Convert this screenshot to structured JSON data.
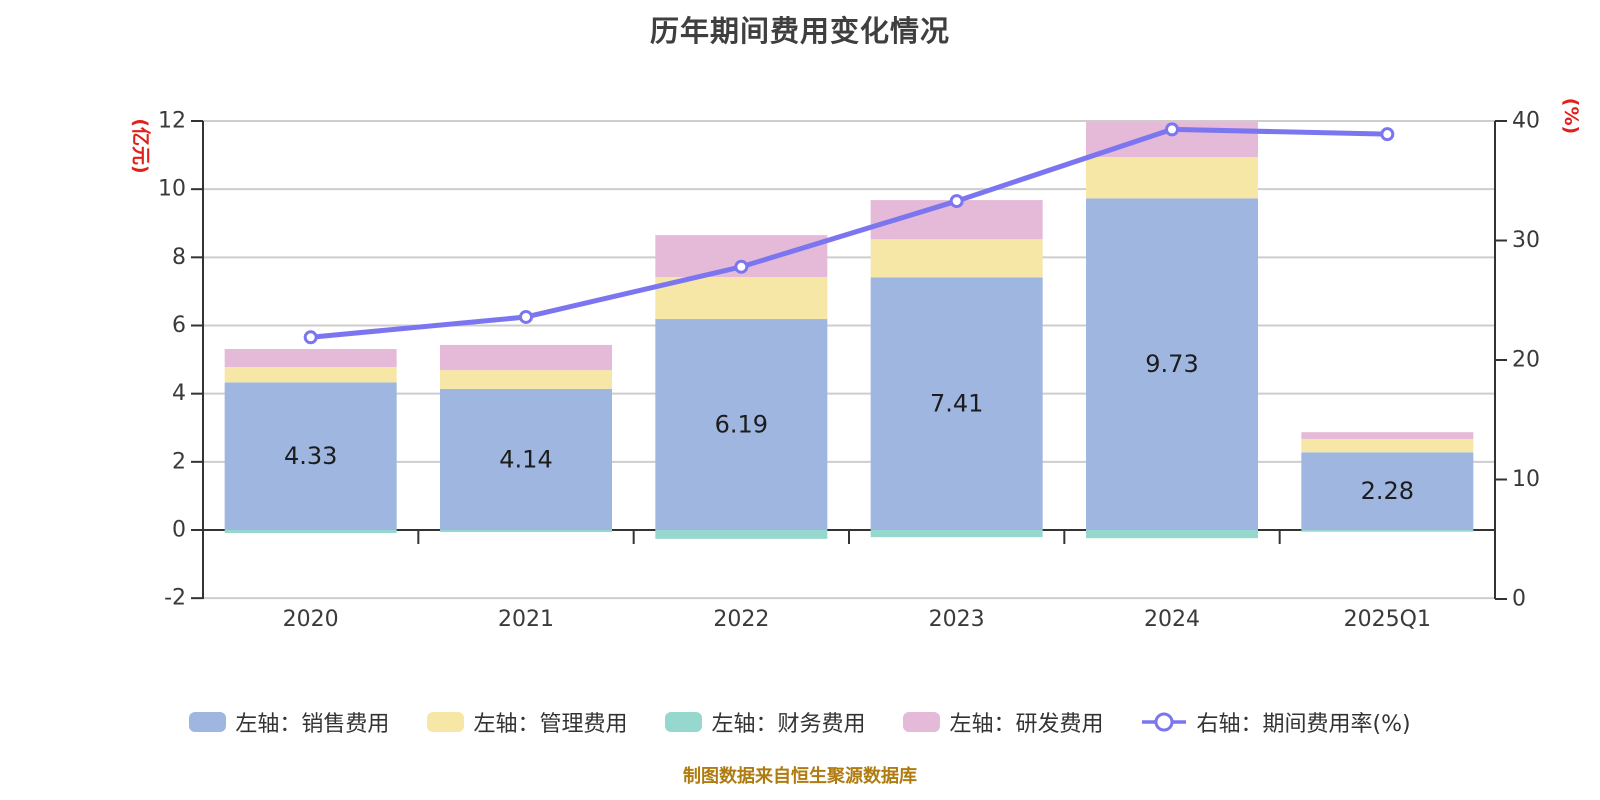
{
  "title": "历年期间费用变化情况",
  "footer": "制图数据来自恒生聚源数据库",
  "colors": {
    "sales": "#9fb7e0",
    "admin": "#f6e7a6",
    "finance": "#96d8cd",
    "rnd": "#e4bad8",
    "rate_line": "#7b76ef",
    "marker_fill": "#ffffff",
    "grid": "#cdcdcd",
    "axis": "#333333",
    "tick_text": "#3a3a3a",
    "bar_label": "#1c1c1c",
    "axis_unit": "#e0201c",
    "footer_text": "#b07c10",
    "title_text": "#3f3f3f",
    "legend_text": "#333333"
  },
  "left_axis": {
    "unit": "(亿元)",
    "min": -2,
    "max": 12,
    "ticks": [
      12,
      10,
      8,
      6,
      4,
      2,
      0,
      -2
    ]
  },
  "right_axis": {
    "unit": "(%)",
    "min": 0,
    "max": 40,
    "ticks": [
      40,
      30,
      20,
      10,
      0
    ]
  },
  "chart_data": {
    "type": "bar",
    "subtype": "stacked-bars-with-right-axis-line",
    "title": "历年期间费用变化情况",
    "categories": [
      "2020",
      "2021",
      "2022",
      "2023",
      "2024",
      "2025Q1"
    ],
    "ylabel_left": "(亿元)",
    "ylabel_right": "(%)",
    "ylim_left": [
      -2,
      12
    ],
    "ylim_right": [
      0,
      40
    ],
    "grid": true,
    "legend_position": "bottom",
    "legend": [
      "左轴：销售费用",
      "左轴：管理费用",
      "左轴：财务费用",
      "左轴：研发费用",
      "右轴：期间费用率(%)"
    ],
    "series": [
      {
        "name": "左轴：销售费用",
        "type": "bar",
        "stack": true,
        "axis": "left",
        "color_key": "sales",
        "values": [
          4.33,
          4.14,
          6.19,
          7.41,
          9.73,
          2.28
        ],
        "labels": [
          "4.33",
          "4.14",
          "6.19",
          "7.41",
          "9.73",
          "2.28"
        ]
      },
      {
        "name": "左轴：管理费用",
        "type": "bar",
        "stack": true,
        "axis": "left",
        "color_key": "admin",
        "values": [
          0.45,
          0.55,
          1.23,
          1.12,
          1.21,
          0.39
        ]
      },
      {
        "name": "左轴：财务费用",
        "type": "bar",
        "stack": true,
        "axis": "left",
        "color_key": "finance",
        "values": [
          -0.09,
          -0.06,
          -0.26,
          -0.21,
          -0.24,
          -0.05
        ]
      },
      {
        "name": "左轴：研发费用",
        "type": "bar",
        "stack": true,
        "axis": "left",
        "color_key": "rnd",
        "values": [
          0.53,
          0.74,
          1.23,
          1.15,
          1.03,
          0.2
        ]
      },
      {
        "name": "右轴：期间费用率(%)",
        "type": "line",
        "axis": "right",
        "color_key": "rate_line",
        "values": [
          21.9,
          23.6,
          27.8,
          33.3,
          39.3,
          38.9
        ]
      }
    ]
  }
}
